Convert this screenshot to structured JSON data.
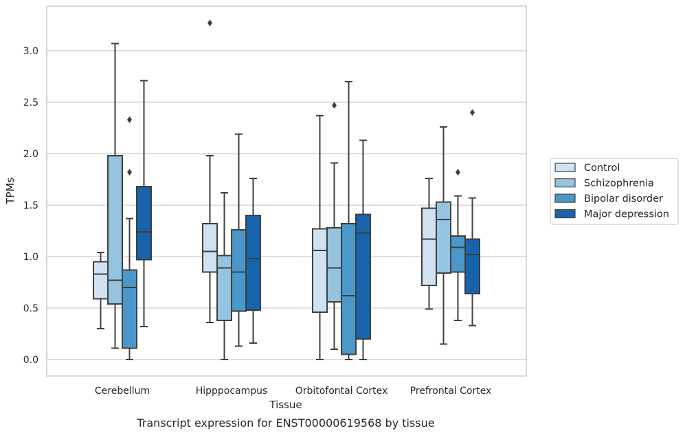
{
  "chart_data": {
    "type": "box",
    "title": "Transcript expression for ENST00000619568 by tissue",
    "xlabel": "Tissue",
    "ylabel": "TPMs",
    "ylim": [
      -0.15,
      3.44
    ],
    "yticks": [
      "0.0",
      "0.5",
      "1.0",
      "1.5",
      "2.0",
      "2.5",
      "3.0"
    ],
    "grid": true,
    "legend_position": "right",
    "categories": [
      "Cerebellum",
      "Hipppocampus",
      "Orbitofontal Cortex",
      "Prefrontal Cortex"
    ],
    "series": [
      {
        "name": "Control",
        "color": "#d0e1f2",
        "boxes": [
          {
            "low": 0.3,
            "q1": 0.59,
            "median": 0.83,
            "q3": 0.95,
            "high": 1.04,
            "outliers": []
          },
          {
            "low": 0.36,
            "q1": 0.85,
            "median": 1.05,
            "q3": 1.32,
            "high": 1.98,
            "outliers": [
              3.27
            ]
          },
          {
            "low": 0.0,
            "q1": 0.46,
            "median": 1.06,
            "q3": 1.27,
            "high": 2.37,
            "outliers": []
          },
          {
            "low": 0.49,
            "q1": 0.72,
            "median": 1.17,
            "q3": 1.47,
            "high": 1.76,
            "outliers": []
          }
        ]
      },
      {
        "name": "Schizophrenia",
        "color": "#94c4df",
        "boxes": [
          {
            "low": 0.11,
            "q1": 0.54,
            "median": 0.77,
            "q3": 1.98,
            "high": 3.07,
            "outliers": []
          },
          {
            "low": 0.0,
            "q1": 0.38,
            "median": 0.89,
            "q3": 1.01,
            "high": 1.62,
            "outliers": []
          },
          {
            "low": 0.1,
            "q1": 0.56,
            "median": 0.89,
            "q3": 1.28,
            "high": 1.91,
            "outliers": [
              2.47
            ]
          },
          {
            "low": 0.15,
            "q1": 0.84,
            "median": 1.36,
            "q3": 1.53,
            "high": 2.26,
            "outliers": []
          }
        ]
      },
      {
        "name": "Bipolar disorder",
        "color": "#4a98c9",
        "boxes": [
          {
            "low": 0.0,
            "q1": 0.11,
            "median": 0.7,
            "q3": 0.87,
            "high": 1.37,
            "outliers": [
              1.82,
              2.33
            ]
          },
          {
            "low": 0.13,
            "q1": 0.47,
            "median": 0.85,
            "q3": 1.26,
            "high": 2.19,
            "outliers": []
          },
          {
            "low": 0.0,
            "q1": 0.05,
            "median": 0.62,
            "q3": 1.32,
            "high": 2.7,
            "outliers": []
          },
          {
            "low": 0.38,
            "q1": 0.85,
            "median": 1.09,
            "q3": 1.2,
            "high": 1.59,
            "outliers": [
              1.82
            ]
          }
        ]
      },
      {
        "name": "Major depression",
        "color": "#1764ab",
        "boxes": [
          {
            "low": 0.32,
            "q1": 0.97,
            "median": 1.24,
            "q3": 1.68,
            "high": 2.71,
            "outliers": []
          },
          {
            "low": 0.16,
            "q1": 0.48,
            "median": 0.98,
            "q3": 1.4,
            "high": 1.76,
            "outliers": []
          },
          {
            "low": 0.0,
            "q1": 0.2,
            "median": 1.23,
            "q3": 1.41,
            "high": 2.13,
            "outliers": []
          },
          {
            "low": 0.33,
            "q1": 0.64,
            "median": 1.02,
            "q3": 1.17,
            "high": 1.57,
            "outliers": [
              2.4
            ]
          }
        ]
      }
    ],
    "colors": {
      "edge": "#3f3f3f",
      "grid": "#cccccc",
      "frame": "#cccccc"
    }
  }
}
